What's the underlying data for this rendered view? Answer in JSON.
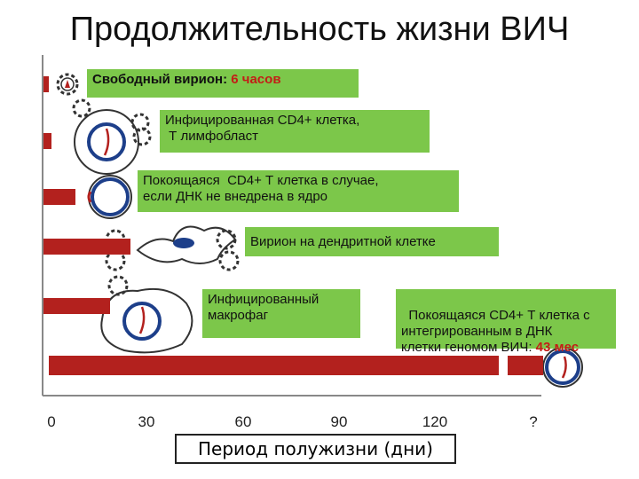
{
  "title": "Продолжительность жизни ВИЧ",
  "labels": {
    "free_virion": "Свободный вирион: ",
    "free_virion_value": "6 часов",
    "infected_cd4": "Инфицированная CD4+ клетка,\n Т лимфобласт",
    "resting_cd4_unintegrated": "Покоящаяся  CD4+ Т клетка в случае,\nесли ДНК не внедрена в ядро",
    "virion_dendritic": "Вирион на дендритной клетке",
    "infected_macrophage": "Инфицированный\nмакрофаг",
    "resting_cd4_integrated": "Покоящаяся CD4+ Т клетка с\nинтегрированным в ДНК\nклетки геномом ВИЧ: ",
    "resting_cd4_integrated_value": "43 мес"
  },
  "x_ticks": [
    "0",
    "30",
    "60",
    "90",
    "120",
    "?"
  ],
  "x_axis_label": "Период полужизни (дни)",
  "colors": {
    "bar": "#b3211e",
    "label_bg": "#7cc74a",
    "value_text": "#c31d16"
  }
}
